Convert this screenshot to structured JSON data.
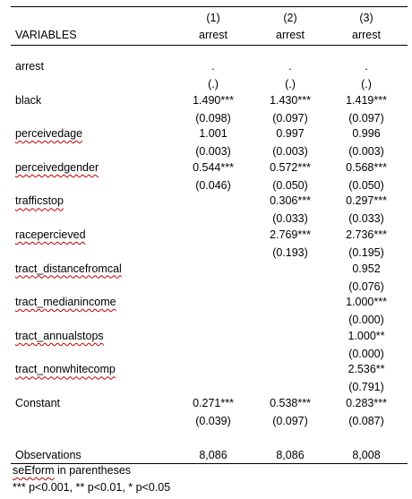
{
  "header": {
    "col_numbers": [
      "(1)",
      "(2)",
      "(3)"
    ],
    "variables_label": "VARIABLES",
    "dep_vars": [
      "arrest",
      "arrest",
      "arrest"
    ]
  },
  "rows": [
    {
      "label": "arrest",
      "coef": [
        ".",
        ".",
        "."
      ],
      "se": [
        "(.)",
        "(.)",
        "(.)"
      ],
      "squiggle": false
    },
    {
      "label": "black",
      "coef": [
        "1.490***",
        "1.430***",
        "1.419***"
      ],
      "se": [
        "(0.098)",
        "(0.097)",
        "(0.097)"
      ],
      "squiggle": false
    },
    {
      "label": "perceivedage",
      "coef": [
        "1.001",
        "0.997",
        "0.996"
      ],
      "se": [
        "(0.003)",
        "(0.003)",
        "(0.003)"
      ],
      "squiggle": true
    },
    {
      "label": "perceivedgender",
      "coef": [
        "0.544***",
        "0.572***",
        "0.568***"
      ],
      "se": [
        "(0.046)",
        "(0.050)",
        "(0.050)"
      ],
      "squiggle": true
    },
    {
      "label": "trafficstop",
      "coef": [
        "",
        "0.306***",
        "0.297***"
      ],
      "se": [
        "",
        "(0.033)",
        "(0.033)"
      ],
      "squiggle": true
    },
    {
      "label": "racepercieved",
      "coef": [
        "",
        "2.769***",
        "2.736***"
      ],
      "se": [
        "",
        "(0.193)",
        "(0.195)"
      ],
      "squiggle": true
    },
    {
      "label": "tract_distancefromcal",
      "coef": [
        "",
        "",
        "0.952"
      ],
      "se": [
        "",
        "",
        "(0.076)"
      ],
      "squiggle": true
    },
    {
      "label": "tract_medianincome",
      "coef": [
        "",
        "",
        "1.000***"
      ],
      "se": [
        "",
        "",
        "(0.000)"
      ],
      "squiggle": true
    },
    {
      "label": "tract_annualstops",
      "coef": [
        "",
        "",
        "1.000**"
      ],
      "se": [
        "",
        "",
        "(0.000)"
      ],
      "squiggle": true
    },
    {
      "label": "tract_nonwhitecomp",
      "coef": [
        "",
        "",
        "2.536**"
      ],
      "se": [
        "",
        "",
        "(0.791)"
      ],
      "squiggle": true
    },
    {
      "label": "Constant",
      "coef": [
        "0.271***",
        "0.538***",
        "0.283***"
      ],
      "se": [
        "(0.039)",
        "(0.097)",
        "(0.087)"
      ],
      "squiggle": false
    }
  ],
  "observations": {
    "label": "Observations",
    "values": [
      "8,086",
      "8,086",
      "8,008"
    ]
  },
  "notes": {
    "line1_word": "seEform",
    "line1_rest": " in parentheses",
    "line2": "*** p<0.001, ** p<0.01, * p<0.05"
  }
}
